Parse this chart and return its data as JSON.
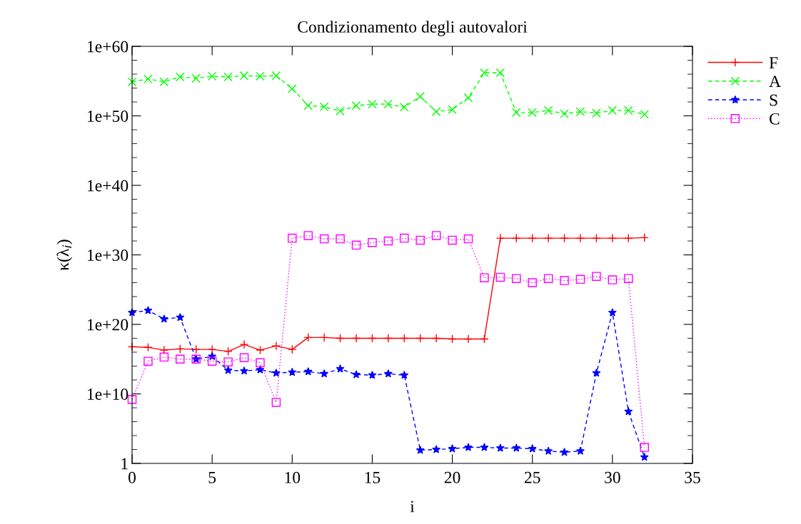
{
  "chart_data": {
    "type": "line",
    "title": "Condizionamento degli autovalori",
    "xlabel": "i",
    "ylabel": "κ(λ$_{i}$)",
    "x": [
      0,
      1,
      2,
      3,
      4,
      5,
      6,
      7,
      8,
      9,
      10,
      11,
      12,
      13,
      14,
      15,
      16,
      17,
      18,
      19,
      20,
      21,
      22,
      23,
      24,
      25,
      26,
      27,
      28,
      29,
      30,
      31,
      32
    ],
    "series": [
      {
        "name": "F",
        "color": "#ff0000",
        "line_style": "solid",
        "marker": "cross",
        "values": [
          6e+16,
          5e+16,
          2e+16,
          3e+16,
          2.5e+16,
          2.5e+16,
          1.3e+16,
          1.3e+17,
          2e+16,
          8e+16,
          2.5e+16,
          1.3e+18,
          1.3e+18,
          1e+18,
          1e+18,
          1e+18,
          1e+18,
          1e+18,
          1e+18,
          1e+18,
          8e+17,
          8e+17,
          8e+17,
          2.5e+32,
          2.5e+32,
          2.5e+32,
          2.5e+32,
          2.5e+32,
          2.5e+32,
          2.5e+32,
          2.5e+32,
          2.5e+32,
          3e+32
        ]
      },
      {
        "name": "A",
        "color": "#00ff00",
        "line_style": "dashed",
        "marker": "x",
        "values": [
          8e+54,
          2e+55,
          8e+54,
          4e+55,
          2.5e+55,
          5e+55,
          4e+55,
          6e+55,
          5e+55,
          6e+55,
          8e+53,
          3e+51,
          2e+51,
          5e+50,
          3e+51,
          5e+51,
          5e+51,
          1.8e+51,
          6e+52,
          4e+50,
          8e+50,
          4e+52,
          1.6e+56,
          1.6e+56,
          3e+50,
          3e+50,
          6e+50,
          2e+50,
          4e+50,
          2.5e+50,
          6e+50,
          6e+50,
          1.6e+50
        ]
      },
      {
        "name": "S",
        "color": "#0000ff",
        "line_style": "dashed",
        "marker": "star",
        "values": [
          5e+21,
          1e+22,
          6e+20,
          1e+21,
          1000000000000000.0,
          2500000000000000.0,
          25000000000000.0,
          20000000000000.0,
          30000000000000.0,
          10000000000000.0,
          13000000000000.0,
          16000000000000.0,
          8000000000000.0,
          40000000000000.0,
          6000000000000.0,
          5000000000000.0,
          8000000000000.0,
          5000000000000.0,
          80,
          100,
          130,
          200,
          200,
          160,
          160,
          130,
          60,
          40,
          60,
          10000000000000.0,
          5e+21,
          30000000.0,
          8
        ]
      },
      {
        "name": "C",
        "color": "#ff00ff",
        "line_style": "dotted",
        "marker": "square",
        "values": [
          1600000000.0,
          500000000000000.0,
          2000000000000000.0,
          1000000000000000.0,
          1000000000000000.0,
          500000000000000.0,
          400000000000000.0,
          1600000000000000.0,
          300000000000000.0,
          600000000.0,
          2.5e+32,
          6e+32,
          2e+32,
          2e+32,
          2.5e+31,
          6e+31,
          1e+32,
          2.5e+32,
          1.3e+32,
          6e+32,
          1.3e+32,
          2e+32,
          5e+26,
          6e+26,
          4e+26,
          1e+26,
          4e+26,
          2e+26,
          3e+26,
          8e+26,
          2.5e+26,
          4e+26,
          200
        ]
      }
    ],
    "log": "y",
    "xlim": [
      0,
      35
    ],
    "xticks": [
      0,
      5,
      10,
      15,
      20,
      25,
      30,
      35
    ],
    "ylim": [
      1,
      1e+60
    ],
    "yticks": [
      {
        "value": 1,
        "label": "1"
      },
      {
        "value": 10000000000.0,
        "label": "1e+10"
      },
      {
        "value": 1e+20,
        "label": "1e+20"
      },
      {
        "value": 1e+30,
        "label": "1e+30"
      },
      {
        "value": 1e+40,
        "label": "1e+40"
      },
      {
        "value": 1e+50,
        "label": "1e+50"
      },
      {
        "value": 1e+60,
        "label": "1e+60"
      }
    ],
    "grid": false,
    "legend": "top right"
  }
}
